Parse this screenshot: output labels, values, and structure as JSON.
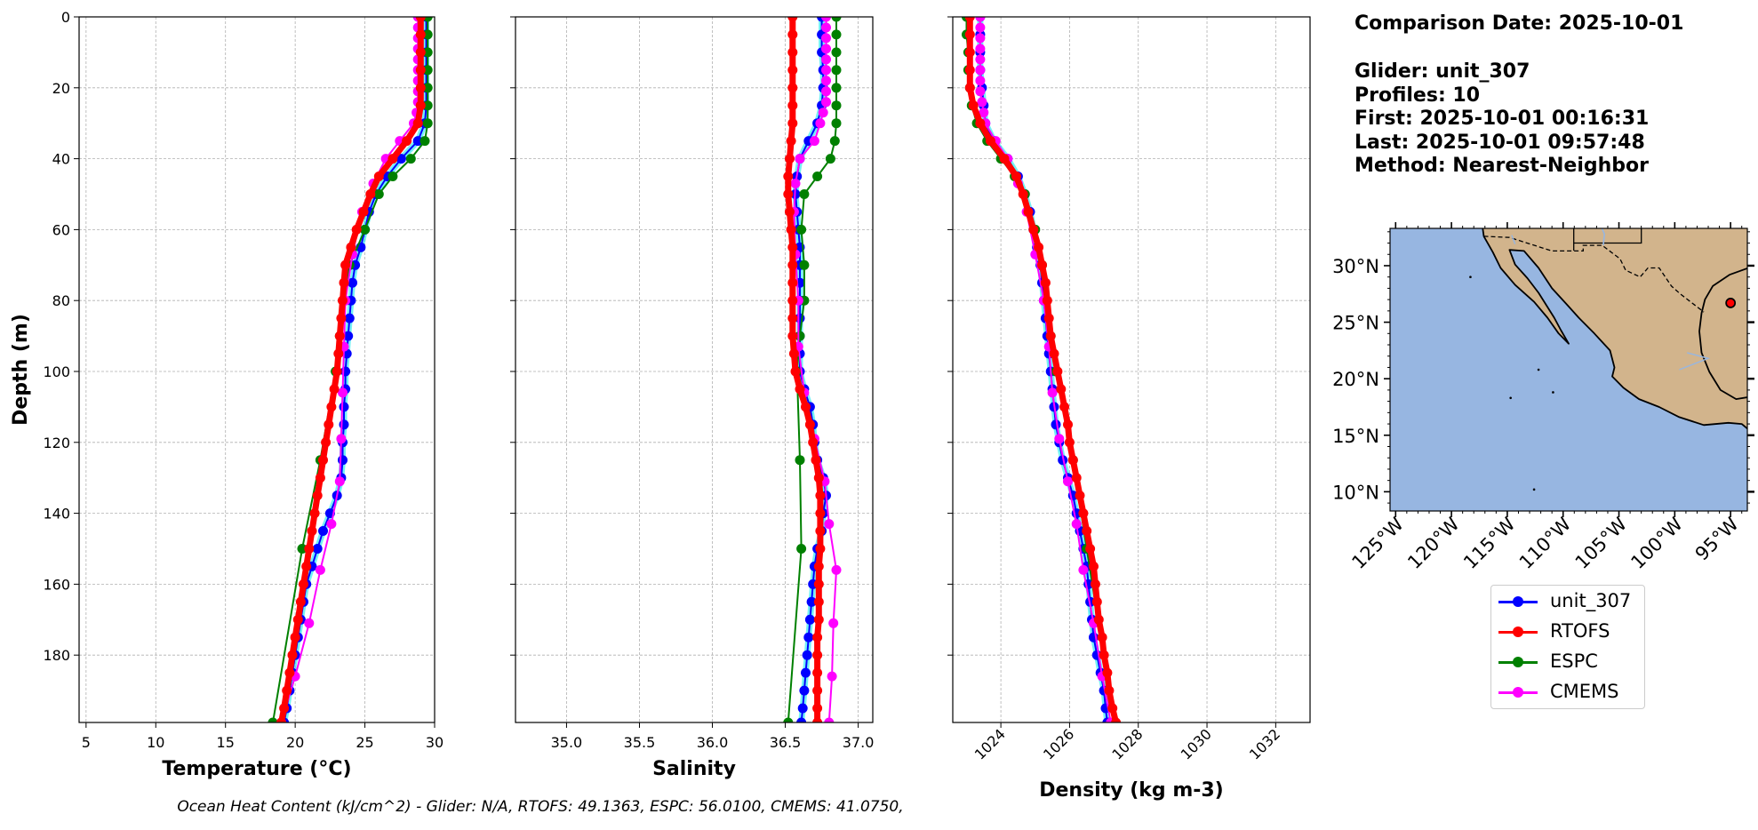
{
  "info": {
    "comparison_date": "Comparison Date: 2025-10-01",
    "glider": "Glider: unit_307",
    "profiles": "Profiles: 10",
    "first": "First: 2025-10-01 00:16:31",
    "last": "Last: 2025-10-01 09:57:48",
    "method": "Method: Nearest-Neighbor"
  },
  "footer": "Ocean Heat Content (kJ/cm^2) - Glider: N/A,  RTOFS: 49.1363,  ESPC: 56.0100,  CMEMS: 41.0750,",
  "colors": {
    "unit_307": "#0000ff",
    "unit_307_raw": "#00e5ee",
    "rtofs": "#ff0000",
    "espc": "#008000",
    "cmems": "#ff00ff",
    "grid": "#b0b0b0",
    "ocean": "#97b6e1",
    "land": "#d2b48c"
  },
  "legend": [
    {
      "key": "unit_307",
      "label": "unit_307"
    },
    {
      "key": "rtofs",
      "label": "RTOFS"
    },
    {
      "key": "espc",
      "label": "ESPC"
    },
    {
      "key": "cmems",
      "label": "CMEMS"
    }
  ],
  "chart_data": [
    {
      "type": "line",
      "title": "",
      "xlabel": "Temperature (°C)",
      "ylabel": "Depth (m)",
      "xlim": [
        4.5,
        30
      ],
      "ylim": [
        199,
        0
      ],
      "xticks": [
        "5",
        "10",
        "15",
        "20",
        "25",
        "30"
      ],
      "yticks": [
        "0",
        "20",
        "40",
        "60",
        "80",
        "100",
        "120",
        "140",
        "160",
        "180"
      ],
      "grid": true,
      "series": [
        {
          "name": "unit_307",
          "depth": [
            0,
            5,
            10,
            15,
            20,
            25,
            30,
            35,
            40,
            45,
            50,
            55,
            60,
            65,
            70,
            75,
            80,
            85,
            90,
            95,
            100,
            105,
            110,
            115,
            120,
            125,
            130,
            135,
            140,
            145,
            150,
            155,
            160,
            165,
            170,
            175,
            180,
            185,
            190,
            195,
            199
          ],
          "values": [
            29.4,
            29.4,
            29.4,
            29.4,
            29.4,
            29.4,
            29.3,
            28.8,
            27.6,
            26.6,
            25.8,
            25.3,
            25.0,
            24.7,
            24.3,
            24.1,
            24.0,
            23.9,
            23.8,
            23.7,
            23.6,
            23.6,
            23.5,
            23.5,
            23.4,
            23.4,
            23.3,
            23.0,
            22.5,
            22.0,
            21.6,
            21.2,
            20.8,
            20.6,
            20.4,
            20.2,
            20.0,
            19.8,
            19.6,
            19.4,
            19.2
          ]
        },
        {
          "name": "RTOFS",
          "depth": [
            0,
            5,
            10,
            15,
            20,
            25,
            30,
            35,
            40,
            45,
            50,
            55,
            60,
            65,
            70,
            75,
            80,
            85,
            90,
            95,
            100,
            105,
            110,
            115,
            120,
            125,
            130,
            135,
            140,
            145,
            150,
            155,
            160,
            165,
            170,
            175,
            180,
            185,
            190,
            195,
            199
          ],
          "values": [
            29.0,
            29.0,
            29.0,
            29.0,
            29.0,
            29.0,
            28.8,
            28.0,
            27.0,
            26.0,
            25.4,
            24.9,
            24.4,
            24.0,
            23.6,
            23.5,
            23.4,
            23.3,
            23.2,
            23.1,
            23.0,
            22.8,
            22.6,
            22.4,
            22.2,
            22.0,
            21.8,
            21.6,
            21.4,
            21.2,
            21.0,
            20.8,
            20.6,
            20.4,
            20.2,
            20.0,
            19.8,
            19.6,
            19.4,
            19.2,
            19.0
          ]
        },
        {
          "name": "ESPC",
          "depth": [
            0,
            5,
            10,
            15,
            20,
            25,
            30,
            35,
            40,
            45,
            50,
            60,
            70,
            80,
            90,
            100,
            125,
            150,
            199
          ],
          "values": [
            29.5,
            29.5,
            29.5,
            29.5,
            29.5,
            29.5,
            29.5,
            29.3,
            28.3,
            27.0,
            26.0,
            25.0,
            23.9,
            23.5,
            23.2,
            22.9,
            21.8,
            20.5,
            18.4
          ]
        },
        {
          "name": "CMEMS",
          "depth": [
            0,
            3,
            6,
            9,
            12,
            15,
            18,
            21,
            24,
            27,
            30,
            35,
            40,
            47,
            55,
            67,
            80,
            93,
            106,
            119,
            131,
            143,
            156,
            171,
            186,
            199
          ],
          "values": [
            28.8,
            28.8,
            28.8,
            28.8,
            28.8,
            28.8,
            28.8,
            28.8,
            28.8,
            28.7,
            28.5,
            27.5,
            26.5,
            25.6,
            24.8,
            24.1,
            23.6,
            23.5,
            23.4,
            23.3,
            23.2,
            22.6,
            21.8,
            21.0,
            20.0,
            19.0
          ]
        }
      ]
    },
    {
      "type": "line",
      "title": "",
      "xlabel": "Salinity",
      "ylabel": "",
      "xlim": [
        34.65,
        37.1
      ],
      "ylim": [
        199,
        0
      ],
      "xticks": [
        "35.0",
        "35.5",
        "36.0",
        "36.5",
        "37.0"
      ],
      "grid": true,
      "series": [
        {
          "name": "unit_307",
          "depth": [
            0,
            5,
            10,
            15,
            20,
            25,
            30,
            35,
            40,
            45,
            50,
            55,
            60,
            65,
            70,
            75,
            80,
            85,
            90,
            95,
            100,
            105,
            110,
            115,
            120,
            125,
            130,
            135,
            140,
            145,
            150,
            155,
            160,
            165,
            170,
            175,
            180,
            185,
            190,
            195,
            199
          ],
          "values": [
            36.75,
            36.75,
            36.75,
            36.76,
            36.76,
            36.75,
            36.72,
            36.66,
            36.6,
            36.58,
            36.57,
            36.58,
            36.59,
            36.6,
            36.6,
            36.6,
            36.6,
            36.6,
            36.6,
            36.6,
            36.6,
            36.63,
            36.67,
            36.69,
            36.7,
            36.72,
            36.76,
            36.78,
            36.76,
            36.75,
            36.72,
            36.7,
            36.69,
            36.68,
            36.67,
            36.66,
            36.65,
            36.64,
            36.63,
            36.62,
            36.61
          ]
        },
        {
          "name": "RTOFS",
          "depth": [
            0,
            5,
            10,
            15,
            20,
            25,
            30,
            35,
            40,
            45,
            50,
            55,
            60,
            65,
            70,
            75,
            80,
            85,
            90,
            95,
            100,
            105,
            110,
            115,
            120,
            125,
            130,
            135,
            140,
            145,
            150,
            155,
            160,
            165,
            170,
            175,
            180,
            185,
            190,
            195,
            199
          ],
          "values": [
            36.55,
            36.55,
            36.55,
            36.55,
            36.55,
            36.55,
            36.55,
            36.54,
            36.53,
            36.52,
            36.52,
            36.53,
            36.54,
            36.55,
            36.55,
            36.55,
            36.55,
            36.55,
            36.55,
            36.56,
            36.57,
            36.6,
            36.64,
            36.67,
            36.69,
            36.71,
            36.73,
            36.74,
            36.74,
            36.74,
            36.74,
            36.73,
            36.73,
            36.73,
            36.73,
            36.72,
            36.72,
            36.72,
            36.72,
            36.72,
            36.72
          ]
        },
        {
          "name": "ESPC",
          "depth": [
            0,
            5,
            10,
            15,
            20,
            25,
            30,
            35,
            40,
            45,
            50,
            60,
            70,
            80,
            90,
            100,
            125,
            150,
            199
          ],
          "values": [
            36.85,
            36.85,
            36.85,
            36.85,
            36.85,
            36.85,
            36.85,
            36.84,
            36.81,
            36.72,
            36.63,
            36.61,
            36.63,
            36.63,
            36.6,
            36.58,
            36.6,
            36.61,
            36.52
          ]
        },
        {
          "name": "CMEMS",
          "depth": [
            0,
            3,
            6,
            9,
            12,
            15,
            18,
            21,
            24,
            27,
            30,
            35,
            40,
            47,
            55,
            67,
            80,
            93,
            106,
            119,
            131,
            143,
            156,
            171,
            186,
            199
          ],
          "values": [
            36.78,
            36.78,
            36.78,
            36.78,
            36.78,
            36.78,
            36.78,
            36.78,
            36.78,
            36.76,
            36.74,
            36.7,
            36.6,
            36.57,
            36.56,
            36.57,
            36.59,
            36.59,
            36.63,
            36.7,
            36.77,
            36.8,
            36.85,
            36.83,
            36.82,
            36.8
          ]
        }
      ]
    },
    {
      "type": "line",
      "title": "",
      "xlabel": "Density (kg m-3)",
      "ylabel": "",
      "xlim": [
        1022.6,
        1033.0
      ],
      "ylim": [
        199,
        0
      ],
      "xticks": [
        "1024",
        "1026",
        "1028",
        "1030",
        "1032"
      ],
      "grid": true,
      "series": [
        {
          "name": "unit_307",
          "depth": [
            0,
            5,
            10,
            15,
            20,
            25,
            30,
            35,
            40,
            45,
            50,
            55,
            60,
            65,
            70,
            75,
            80,
            85,
            90,
            95,
            100,
            105,
            110,
            115,
            120,
            125,
            130,
            135,
            140,
            145,
            150,
            155,
            160,
            165,
            170,
            175,
            180,
            185,
            190,
            195,
            199
          ],
          "values": [
            1023.4,
            1023.4,
            1023.4,
            1023.4,
            1023.45,
            1023.5,
            1023.55,
            1023.8,
            1024.2,
            1024.5,
            1024.7,
            1024.85,
            1024.95,
            1025.05,
            1025.15,
            1025.2,
            1025.25,
            1025.3,
            1025.35,
            1025.4,
            1025.45,
            1025.5,
            1025.55,
            1025.6,
            1025.7,
            1025.8,
            1025.95,
            1026.1,
            1026.2,
            1026.3,
            1026.4,
            1026.5,
            1026.55,
            1026.6,
            1026.65,
            1026.7,
            1026.8,
            1026.9,
            1027.0,
            1027.05,
            1027.1
          ]
        },
        {
          "name": "RTOFS",
          "depth": [
            0,
            5,
            10,
            15,
            20,
            25,
            30,
            35,
            40,
            45,
            50,
            55,
            60,
            65,
            70,
            75,
            80,
            85,
            90,
            95,
            100,
            105,
            110,
            115,
            120,
            125,
            130,
            135,
            140,
            145,
            150,
            155,
            160,
            165,
            170,
            175,
            180,
            185,
            190,
            195,
            199
          ],
          "values": [
            1023.1,
            1023.1,
            1023.1,
            1023.1,
            1023.1,
            1023.2,
            1023.4,
            1023.7,
            1024.1,
            1024.45,
            1024.65,
            1024.8,
            1024.95,
            1025.1,
            1025.2,
            1025.3,
            1025.35,
            1025.4,
            1025.45,
            1025.55,
            1025.65,
            1025.75,
            1025.85,
            1025.95,
            1026.0,
            1026.1,
            1026.2,
            1026.3,
            1026.4,
            1026.5,
            1026.6,
            1026.7,
            1026.75,
            1026.8,
            1026.85,
            1026.95,
            1027.0,
            1027.1,
            1027.15,
            1027.25,
            1027.35
          ]
        },
        {
          "name": "ESPC",
          "depth": [
            0,
            5,
            10,
            15,
            20,
            25,
            30,
            35,
            40,
            45,
            50,
            60,
            70,
            80,
            90,
            100,
            125,
            150,
            199
          ],
          "values": [
            1023.0,
            1023.0,
            1023.05,
            1023.05,
            1023.1,
            1023.15,
            1023.3,
            1023.6,
            1024.0,
            1024.4,
            1024.7,
            1025.0,
            1025.2,
            1025.3,
            1025.45,
            1025.6,
            1026.1,
            1026.5,
            1027.3
          ]
        },
        {
          "name": "CMEMS",
          "depth": [
            0,
            3,
            6,
            9,
            12,
            15,
            18,
            21,
            24,
            27,
            30,
            35,
            40,
            47,
            55,
            67,
            80,
            93,
            106,
            119,
            131,
            143,
            156,
            171,
            186,
            199
          ],
          "values": [
            1023.4,
            1023.4,
            1023.4,
            1023.4,
            1023.4,
            1023.4,
            1023.4,
            1023.4,
            1023.45,
            1023.5,
            1023.55,
            1023.85,
            1024.2,
            1024.5,
            1024.75,
            1025.0,
            1025.25,
            1025.4,
            1025.5,
            1025.7,
            1025.95,
            1026.2,
            1026.4,
            1026.7,
            1026.95,
            1027.2
          ]
        }
      ]
    }
  ],
  "map": {
    "lon_ticks": [
      "125°W",
      "120°W",
      "115°W",
      "110°W",
      "105°W",
      "100°W",
      "95°W"
    ],
    "lat_ticks": [
      "30°N",
      "25°N",
      "20°N",
      "15°N",
      "10°N"
    ],
    "lon_range": [
      -125.5,
      -93.5
    ],
    "lat_range": [
      8.3,
      33.3
    ],
    "glider_position": {
      "lon": -95.0,
      "lat": 26.7
    }
  }
}
